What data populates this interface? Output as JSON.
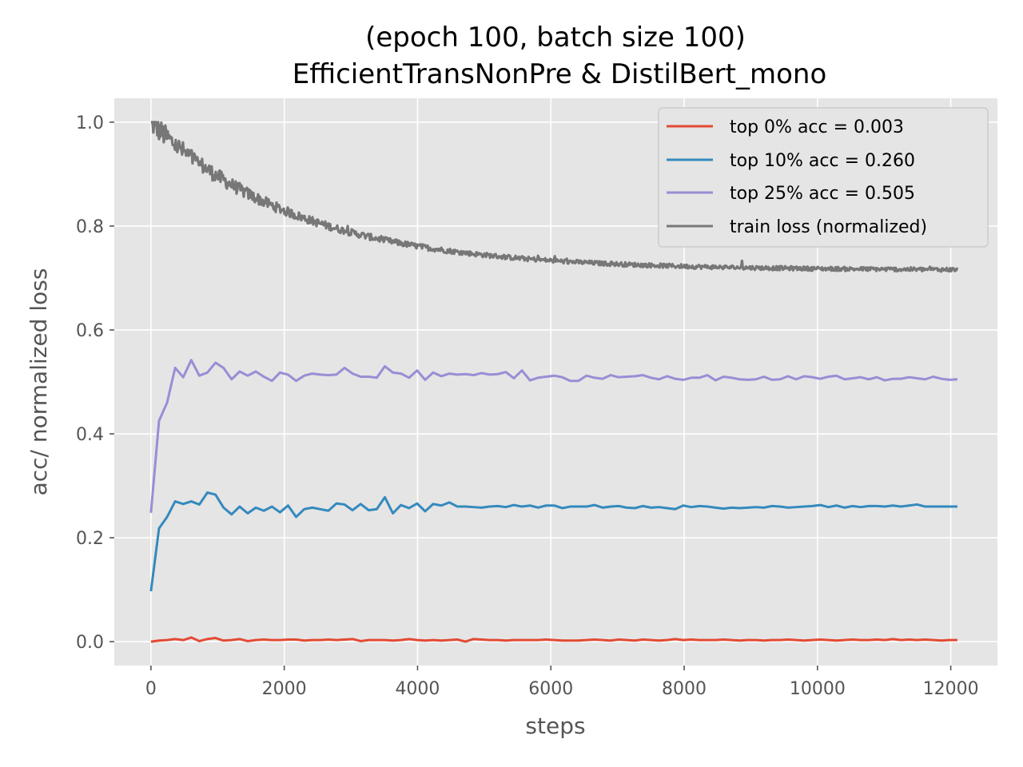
{
  "chart_data": {
    "type": "line",
    "title_line1": "(epoch 100, batch size 100)",
    "title_line2": "EfficientTransNonPre & DistilBert_mono",
    "xlabel": "steps",
    "ylabel": "acc/ normalized loss",
    "xlim": [
      -550,
      12700
    ],
    "ylim": [
      -0.046,
      1.046
    ],
    "xticks": [
      0,
      2000,
      4000,
      6000,
      8000,
      10000,
      12000
    ],
    "yticks": [
      0.0,
      0.2,
      0.4,
      0.6,
      0.8,
      1.0
    ],
    "ytick_labels": [
      "0.0",
      "0.2",
      "0.4",
      "0.6",
      "0.8",
      "1.0"
    ],
    "grid": true,
    "legend_position": "top-right",
    "background": "#e5e5e5",
    "series": [
      {
        "name": "top 0% acc = 0.003",
        "color": "#e24a33",
        "x_start": 0,
        "x_step": 121,
        "values": [
          0.0,
          0.002,
          0.003,
          0.005,
          0.003,
          0.008,
          0.001,
          0.005,
          0.007,
          0.002,
          0.003,
          0.005,
          0.001,
          0.003,
          0.004,
          0.003,
          0.003,
          0.004,
          0.004,
          0.002,
          0.003,
          0.003,
          0.004,
          0.003,
          0.004,
          0.005,
          0.001,
          0.003,
          0.003,
          0.003,
          0.002,
          0.003,
          0.005,
          0.003,
          0.002,
          0.003,
          0.002,
          0.003,
          0.004,
          0.0,
          0.005,
          0.004,
          0.003,
          0.003,
          0.002,
          0.003,
          0.003,
          0.003,
          0.003,
          0.004,
          0.003,
          0.002,
          0.002,
          0.002,
          0.003,
          0.004,
          0.003,
          0.002,
          0.004,
          0.003,
          0.002,
          0.004,
          0.003,
          0.002,
          0.003,
          0.005,
          0.003,
          0.004,
          0.003,
          0.003,
          0.003,
          0.004,
          0.003,
          0.002,
          0.003,
          0.003,
          0.002,
          0.003,
          0.003,
          0.004,
          0.003,
          0.002,
          0.003,
          0.004,
          0.003,
          0.002,
          0.003,
          0.004,
          0.003,
          0.003,
          0.004,
          0.003,
          0.005,
          0.003,
          0.004,
          0.003,
          0.004,
          0.003,
          0.002,
          0.003,
          0.003
        ]
      },
      {
        "name": "top 10% acc = 0.260",
        "color": "#348abd",
        "x_start": 0,
        "x_step": 121,
        "values": [
          0.097,
          0.218,
          0.24,
          0.27,
          0.265,
          0.27,
          0.264,
          0.287,
          0.283,
          0.258,
          0.245,
          0.26,
          0.247,
          0.258,
          0.252,
          0.26,
          0.249,
          0.262,
          0.24,
          0.255,
          0.258,
          0.255,
          0.252,
          0.266,
          0.264,
          0.253,
          0.265,
          0.253,
          0.255,
          0.278,
          0.247,
          0.263,
          0.257,
          0.266,
          0.251,
          0.265,
          0.262,
          0.268,
          0.26,
          0.26,
          0.259,
          0.258,
          0.26,
          0.261,
          0.259,
          0.263,
          0.26,
          0.262,
          0.258,
          0.262,
          0.262,
          0.257,
          0.26,
          0.26,
          0.26,
          0.263,
          0.258,
          0.26,
          0.261,
          0.258,
          0.257,
          0.261,
          0.258,
          0.259,
          0.257,
          0.255,
          0.262,
          0.259,
          0.261,
          0.26,
          0.258,
          0.256,
          0.258,
          0.257,
          0.258,
          0.259,
          0.258,
          0.261,
          0.26,
          0.258,
          0.259,
          0.26,
          0.261,
          0.263,
          0.259,
          0.262,
          0.258,
          0.261,
          0.259,
          0.261,
          0.261,
          0.26,
          0.262,
          0.26,
          0.262,
          0.264,
          0.26,
          0.26,
          0.26,
          0.26,
          0.26
        ]
      },
      {
        "name": "top 25% acc = 0.505",
        "color": "#988ed5",
        "x_start": 0,
        "x_step": 121,
        "values": [
          0.248,
          0.425,
          0.46,
          0.527,
          0.509,
          0.542,
          0.512,
          0.518,
          0.537,
          0.527,
          0.505,
          0.52,
          0.512,
          0.52,
          0.51,
          0.502,
          0.518,
          0.514,
          0.502,
          0.512,
          0.516,
          0.514,
          0.513,
          0.514,
          0.527,
          0.516,
          0.51,
          0.51,
          0.508,
          0.53,
          0.518,
          0.516,
          0.508,
          0.522,
          0.504,
          0.518,
          0.511,
          0.516,
          0.514,
          0.515,
          0.513,
          0.517,
          0.514,
          0.515,
          0.519,
          0.507,
          0.522,
          0.503,
          0.508,
          0.51,
          0.512,
          0.509,
          0.502,
          0.502,
          0.512,
          0.508,
          0.506,
          0.513,
          0.509,
          0.51,
          0.511,
          0.513,
          0.508,
          0.505,
          0.511,
          0.506,
          0.504,
          0.508,
          0.508,
          0.513,
          0.503,
          0.51,
          0.508,
          0.505,
          0.504,
          0.505,
          0.51,
          0.504,
          0.505,
          0.511,
          0.505,
          0.511,
          0.509,
          0.506,
          0.51,
          0.512,
          0.505,
          0.507,
          0.509,
          0.505,
          0.509,
          0.503,
          0.506,
          0.506,
          0.509,
          0.507,
          0.505,
          0.51,
          0.506,
          0.504,
          0.505
        ]
      },
      {
        "name": "train loss (normalized)",
        "color": "#777777",
        "curve": {
          "type": "exp_decay_with_noise",
          "start": 1.0,
          "plateau": 0.715,
          "tau": 2200,
          "x_end": 12100
        }
      }
    ]
  }
}
